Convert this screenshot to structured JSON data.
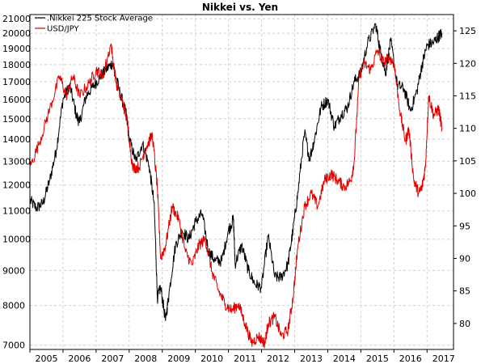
{
  "chart_data": {
    "type": "line",
    "title": "Nikkei vs. Yen",
    "grid": true,
    "legend_position": "top-left",
    "x_ticks": [
      "2005",
      "2006",
      "2007",
      "2008",
      "2009",
      "2010",
      "2011",
      "2012",
      "2013",
      "2014",
      "2015",
      "2016",
      "2017"
    ],
    "x_range": [
      2005.0,
      2017.8
    ],
    "left_axis": {
      "scale": "log",
      "ylim": [
        6900,
        21300
      ],
      "ticks": [
        "7000",
        "8000",
        "9000",
        "10000",
        "11000",
        "12000",
        "13000",
        "14000",
        "15000",
        "16000",
        "17000",
        "18000",
        "19000",
        "20000",
        "21000"
      ]
    },
    "right_axis": {
      "scale": "linear",
      "ylim": [
        76,
        127.5
      ],
      "ticks": [
        "80",
        "85",
        "90",
        "95",
        "100",
        "105",
        "110",
        "115",
        "120",
        "125"
      ]
    },
    "series": [
      {
        "name": ".Nikkei 225 Stock Average",
        "color": "#000000",
        "axis": "left",
        "x": [
          2005.0,
          2005.2,
          2005.4,
          2005.6,
          2005.8,
          2006.0,
          2006.2,
          2006.4,
          2006.5,
          2006.7,
          2006.9,
          2007.1,
          2007.3,
          2007.5,
          2007.7,
          2007.9,
          2008.0,
          2008.2,
          2008.4,
          2008.6,
          2008.75,
          2008.85,
          2008.95,
          2009.1,
          2009.2,
          2009.4,
          2009.6,
          2009.8,
          2010.0,
          2010.2,
          2010.4,
          2010.6,
          2010.8,
          2011.0,
          2011.15,
          2011.2,
          2011.4,
          2011.6,
          2011.8,
          2012.0,
          2012.2,
          2012.4,
          2012.6,
          2012.8,
          2012.95,
          2013.1,
          2013.3,
          2013.45,
          2013.6,
          2013.8,
          2014.0,
          2014.2,
          2014.4,
          2014.6,
          2014.8,
          2015.0,
          2015.2,
          2015.45,
          2015.6,
          2015.75,
          2015.9,
          2016.1,
          2016.3,
          2016.5,
          2016.7,
          2016.85,
          2017.0,
          2017.2,
          2017.35,
          2017.45
        ],
        "values": [
          11400,
          11100,
          11300,
          12200,
          13500,
          16000,
          16800,
          15200,
          14800,
          16200,
          16700,
          17200,
          17700,
          18100,
          16500,
          15300,
          14000,
          13000,
          13800,
          12800,
          11300,
          8200,
          8500,
          7600,
          8300,
          9800,
          10300,
          10000,
          10600,
          10900,
          9600,
          9300,
          9300,
          10300,
          10700,
          9200,
          9800,
          9000,
          8600,
          8500,
          10100,
          8800,
          8800,
          9200,
          10300,
          11700,
          14300,
          13100,
          14000,
          15600,
          16000,
          14600,
          15200,
          15600,
          17000,
          17500,
          19300,
          20600,
          18700,
          17500,
          19500,
          16800,
          16600,
          15400,
          16500,
          18000,
          19200,
          19400,
          19800,
          20000
        ]
      },
      {
        "name": "USD/JPY",
        "color": "#e00000",
        "axis": "right",
        "x": [
          2005.0,
          2005.3,
          2005.6,
          2005.9,
          2006.1,
          2006.3,
          2006.5,
          2006.8,
          2007.0,
          2007.2,
          2007.45,
          2007.6,
          2007.8,
          2007.95,
          2008.1,
          2008.3,
          2008.5,
          2008.7,
          2008.85,
          2008.95,
          2009.1,
          2009.3,
          2009.5,
          2009.7,
          2009.9,
          2010.1,
          2010.3,
          2010.5,
          2010.7,
          2010.9,
          2011.1,
          2011.3,
          2011.5,
          2011.7,
          2011.9,
          2012.1,
          2012.2,
          2012.4,
          2012.6,
          2012.8,
          2012.95,
          2013.1,
          2013.3,
          2013.5,
          2013.7,
          2013.9,
          2014.1,
          2014.3,
          2014.5,
          2014.7,
          2014.8,
          2014.95,
          2015.1,
          2015.3,
          2015.5,
          2015.7,
          2015.85,
          2016.0,
          2016.2,
          2016.35,
          2016.45,
          2016.6,
          2016.75,
          2016.85,
          2016.95,
          2017.05,
          2017.2,
          2017.35,
          2017.45
        ],
        "values": [
          104,
          108,
          113,
          118,
          115,
          118,
          115,
          117,
          119,
          118,
          123,
          117,
          114,
          111,
          104,
          104,
          107,
          109,
          101,
          90,
          92,
          98,
          96,
          91,
          89,
          92,
          93,
          88,
          85,
          83,
          82,
          83,
          80,
          77,
          78,
          77,
          80,
          81,
          78,
          79,
          84,
          92,
          98,
          100,
          98,
          102,
          103,
          102,
          101,
          102,
          105,
          118,
          120,
          119,
          122,
          120,
          121,
          120,
          112,
          108,
          110,
          102,
          100,
          101,
          104,
          115,
          112,
          113,
          110
        ]
      }
    ]
  }
}
